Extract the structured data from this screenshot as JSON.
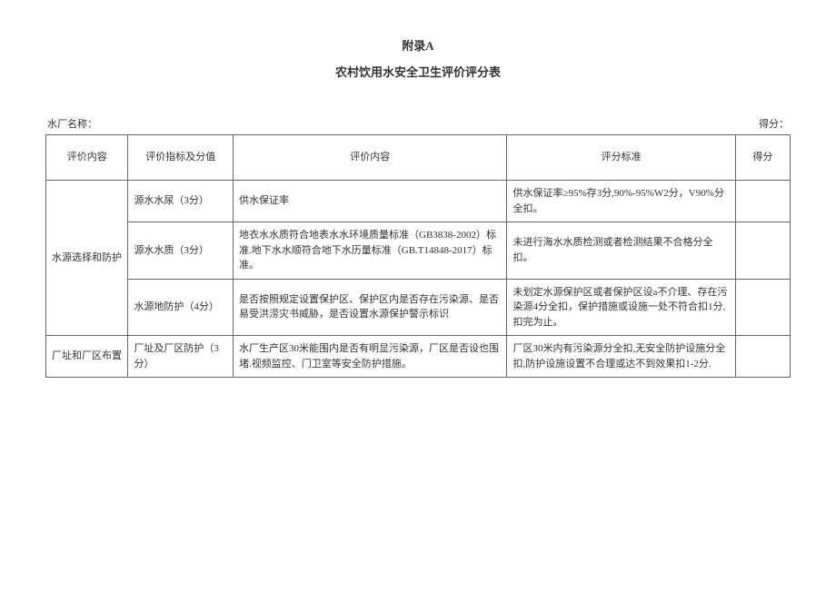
{
  "title": "附录A",
  "subtitle": "农村饮用水安全卫生评价评分表",
  "meta": {
    "left_label": "水厂名称：",
    "right_label": "得分："
  },
  "headers": {
    "category": "评价内容",
    "indicator": "评价指标及分值",
    "content": "评价内容",
    "standard": "评分标准",
    "score": "得分"
  },
  "rows": [
    {
      "category": "水源选择和防护",
      "indicator": "源水水尿（3分）",
      "content": "供水保证率",
      "standard": "供水保证率≥95%存3分,90%-95%W2分，V90%分全扣。",
      "score": ""
    },
    {
      "category": "",
      "indicator": "源水水质（3分）",
      "content": "地衣水水质符合地表水水环境质量标准（GB3838-2002）标准.地下水水顺符合地下水历量标准（GB.T14848-2017）标准。",
      "standard": "未进行海水水质检测或者检测结果不合格分全扣。",
      "score": ""
    },
    {
      "category": "",
      "indicator": "水源地防护（4分）",
      "content": "是否按照规定设置保护区、保护区内是否存在污染源、是否易受洪涝灾书威胁，是否设置水源保护警示标识",
      "standard": "未划定水源保护区或者保护区设a不介理、存在污染源4分全扣，保护措施或设施一处不符合扣1分,扣完为止。",
      "score": ""
    },
    {
      "category": "厂址和厂区布置",
      "indicator": "厂址及厂区防护（3分）",
      "content": "水厂生产区30米能围内是否有明显污染源，厂区是否设也围堵.视频监控、门卫室等安全防护措施。",
      "standard": "厂区30米内有污染源分全扣,无安全防护设施分全扣,防护设施设置不合理或达不到效果扣1-2分.",
      "score": ""
    }
  ]
}
